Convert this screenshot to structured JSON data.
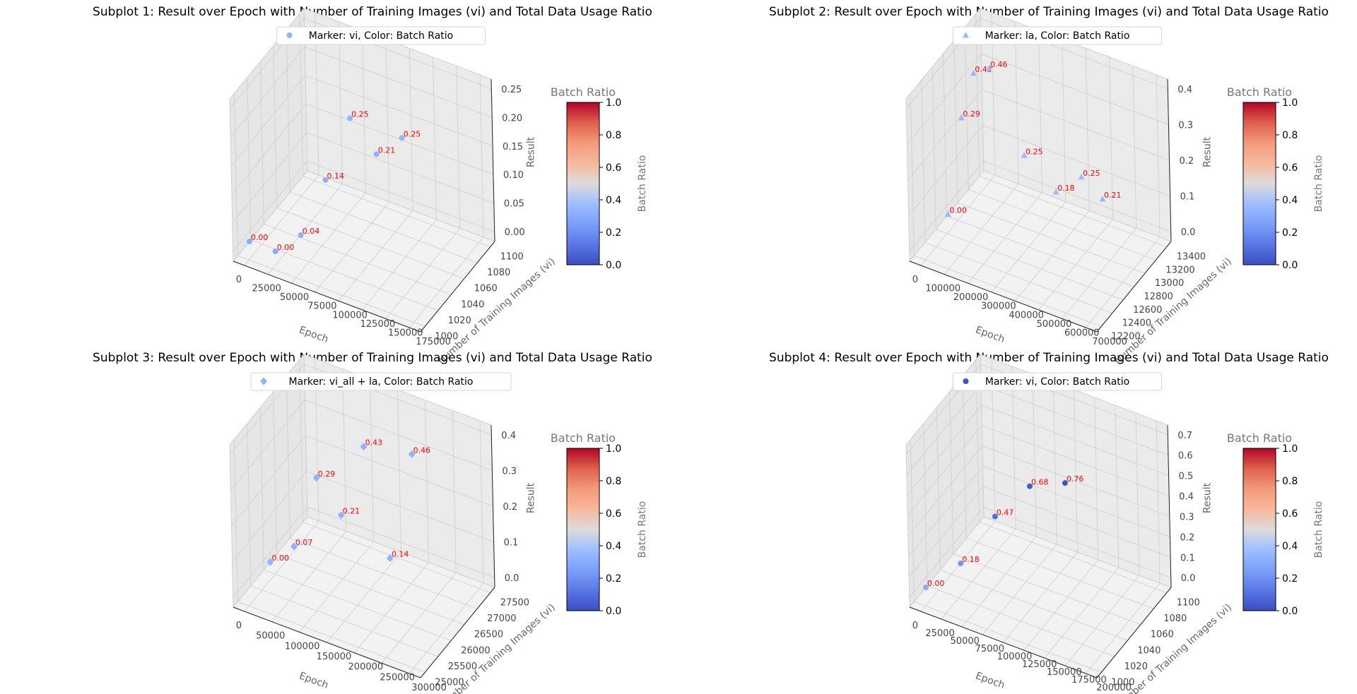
{
  "chart_data": [
    {
      "type": "scatter3d",
      "title": "Subplot 1: Result over Epoch with Number of Training Images (vi) and Total Data Usage Ratio",
      "legend": "Marker: vi, Color: Batch Ratio",
      "marker": "circle",
      "xlabel": "Epoch",
      "ylabel": "Number of Training Images (vi)",
      "zlabel": "Result",
      "xlim": [
        0,
        180000
      ],
      "ylim": [
        1000,
        1110
      ],
      "zlim": [
        0,
        0.25
      ],
      "xticks": [
        "0",
        "25000",
        "50000",
        "75000",
        "100000",
        "125000",
        "150000",
        "175000"
      ],
      "yticks": [
        "1000",
        "1020",
        "1040",
        "1060",
        "1080",
        "1100"
      ],
      "zticks": [
        "0.00",
        "0.05",
        "0.10",
        "0.15",
        "0.20",
        "0.25"
      ],
      "points": [
        {
          "x": 0,
          "y": 1024,
          "z": 0.0,
          "c": 0.3,
          "label": "0.00"
        },
        {
          "x": 25000,
          "y": 1024,
          "z": 0.0,
          "c": 0.3,
          "label": "0.00"
        },
        {
          "x": 50000,
          "y": 1024,
          "z": 0.04,
          "c": 0.32,
          "label": "0.04"
        },
        {
          "x": 75000,
          "y": 1024,
          "z": 0.14,
          "c": 0.32,
          "label": "0.14"
        },
        {
          "x": 100000,
          "y": 1024,
          "z": 0.25,
          "c": 0.33,
          "label": "0.25"
        },
        {
          "x": 125000,
          "y": 1024,
          "z": 0.21,
          "c": 0.33,
          "label": "0.21"
        },
        {
          "x": 150000,
          "y": 1024,
          "z": 0.25,
          "c": 0.34,
          "label": "0.25"
        }
      ]
    },
    {
      "type": "scatter3d",
      "title": "Subplot 2: Result over Epoch with Number of Training Images (vi) and Total Data Usage Ratio",
      "legend": "Marker: la, Color: Batch Ratio",
      "marker": "triangle",
      "xlabel": "Epoch",
      "ylabel": "Number of Training Images (vi)",
      "zlabel": "Result",
      "xlim": [
        0,
        720000
      ],
      "ylim": [
        12100,
        13450
      ],
      "zlim": [
        0,
        0.46
      ],
      "xticks": [
        "0",
        "100000",
        "200000",
        "300000",
        "400000",
        "500000",
        "600000",
        "700000"
      ],
      "yticks": [
        "12200",
        "12400",
        "12600",
        "12800",
        "13000",
        "13200",
        "13400"
      ],
      "zticks": [
        "0.0",
        "0.1",
        "0.2",
        "0.3",
        "0.4"
      ],
      "points": [
        {
          "x": 0,
          "y": 12800,
          "z": 0.0,
          "c": 0.36,
          "label": "0.00"
        },
        {
          "x": 60000,
          "y": 12800,
          "z": 0.29,
          "c": 0.36,
          "label": "0.29"
        },
        {
          "x": 110000,
          "y": 12800,
          "z": 0.43,
          "c": 0.36,
          "label": "0.43"
        },
        {
          "x": 170000,
          "y": 12800,
          "z": 0.46,
          "c": 0.36,
          "label": "0.46"
        },
        {
          "x": 300000,
          "y": 12800,
          "z": 0.25,
          "c": 0.36,
          "label": "0.25"
        },
        {
          "x": 420000,
          "y": 12800,
          "z": 0.18,
          "c": 0.36,
          "label": "0.18"
        },
        {
          "x": 520000,
          "y": 12800,
          "z": 0.25,
          "c": 0.36,
          "label": "0.25"
        },
        {
          "x": 600000,
          "y": 12800,
          "z": 0.21,
          "c": 0.36,
          "label": "0.21"
        }
      ]
    },
    {
      "type": "scatter3d",
      "title": "Subplot 3: Result over Epoch with Number of Training Images (vi) and Total Data Usage Ratio",
      "legend": "Marker: vi_all + la, Color: Batch Ratio",
      "marker": "diamond",
      "xlabel": "Epoch",
      "ylabel": "Number of Training Images (vi)",
      "zlabel": "Result",
      "xlim": [
        0,
        310000
      ],
      "ylim": [
        24800,
        27600
      ],
      "zlim": [
        0,
        0.46
      ],
      "xticks": [
        "0",
        "50000",
        "100000",
        "150000",
        "200000",
        "250000",
        "300000"
      ],
      "yticks": [
        "25000",
        "25500",
        "26000",
        "26500",
        "27000",
        "27500"
      ],
      "zticks": [
        "0.0",
        "0.1",
        "0.2",
        "0.3",
        "0.4"
      ],
      "points": [
        {
          "x": 0,
          "y": 26200,
          "z": 0.0,
          "c": 0.33,
          "label": "0.00"
        },
        {
          "x": 40000,
          "y": 26200,
          "z": 0.07,
          "c": 0.33,
          "label": "0.07"
        },
        {
          "x": 80000,
          "y": 26200,
          "z": 0.29,
          "c": 0.33,
          "label": "0.29"
        },
        {
          "x": 120000,
          "y": 26200,
          "z": 0.21,
          "c": 0.33,
          "label": "0.21"
        },
        {
          "x": 160000,
          "y": 26200,
          "z": 0.43,
          "c": 0.33,
          "label": "0.43"
        },
        {
          "x": 200000,
          "y": 26200,
          "z": 0.14,
          "c": 0.33,
          "label": "0.14"
        },
        {
          "x": 240000,
          "y": 26200,
          "z": 0.46,
          "c": 0.33,
          "label": "0.46"
        }
      ]
    },
    {
      "type": "scatter3d",
      "title": "Subplot 4: Result over Epoch with Number of Training Images (vi) and Total Data Usage Ratio",
      "legend": "Marker: vi, Color: Batch Ratio",
      "marker": "circle",
      "xlabel": "Epoch",
      "ylabel": "Number of Training Images (vi)",
      "zlabel": "Result",
      "xlim": [
        0,
        210000
      ],
      "ylim": [
        1000,
        1110
      ],
      "zlim": [
        0,
        0.78
      ],
      "xticks": [
        "0",
        "25000",
        "50000",
        "75000",
        "100000",
        "125000",
        "150000",
        "175000",
        "200000"
      ],
      "yticks": [
        "1000",
        "1020",
        "1040",
        "1060",
        "1080",
        "1100"
      ],
      "zticks": [
        "0.0",
        "0.1",
        "0.2",
        "0.3",
        "0.4",
        "0.5",
        "0.6",
        "0.7"
      ],
      "points": [
        {
          "x": 0,
          "y": 1024,
          "z": 0.0,
          "c": 0.3,
          "label": "0.00"
        },
        {
          "x": 40000,
          "y": 1024,
          "z": 0.18,
          "c": 0.22,
          "label": "0.18"
        },
        {
          "x": 80000,
          "y": 1024,
          "z": 0.47,
          "c": 0.1,
          "label": "0.47"
        },
        {
          "x": 120000,
          "y": 1024,
          "z": 0.68,
          "c": 0.04,
          "label": "0.68"
        },
        {
          "x": 160000,
          "y": 1024,
          "z": 0.76,
          "c": 0.02,
          "label": "0.76"
        }
      ]
    }
  ],
  "colorbar": {
    "title": "Batch Ratio",
    "label": "Batch Ratio",
    "ticks": [
      "0.0",
      "0.2",
      "0.4",
      "0.6",
      "0.8",
      "1.0"
    ],
    "colormap": "coolwarm",
    "range": [
      0,
      1
    ]
  },
  "colors": {
    "annotation": "#ff0000",
    "pane": "#f2f2f2",
    "grid": "#d0d0d0"
  }
}
